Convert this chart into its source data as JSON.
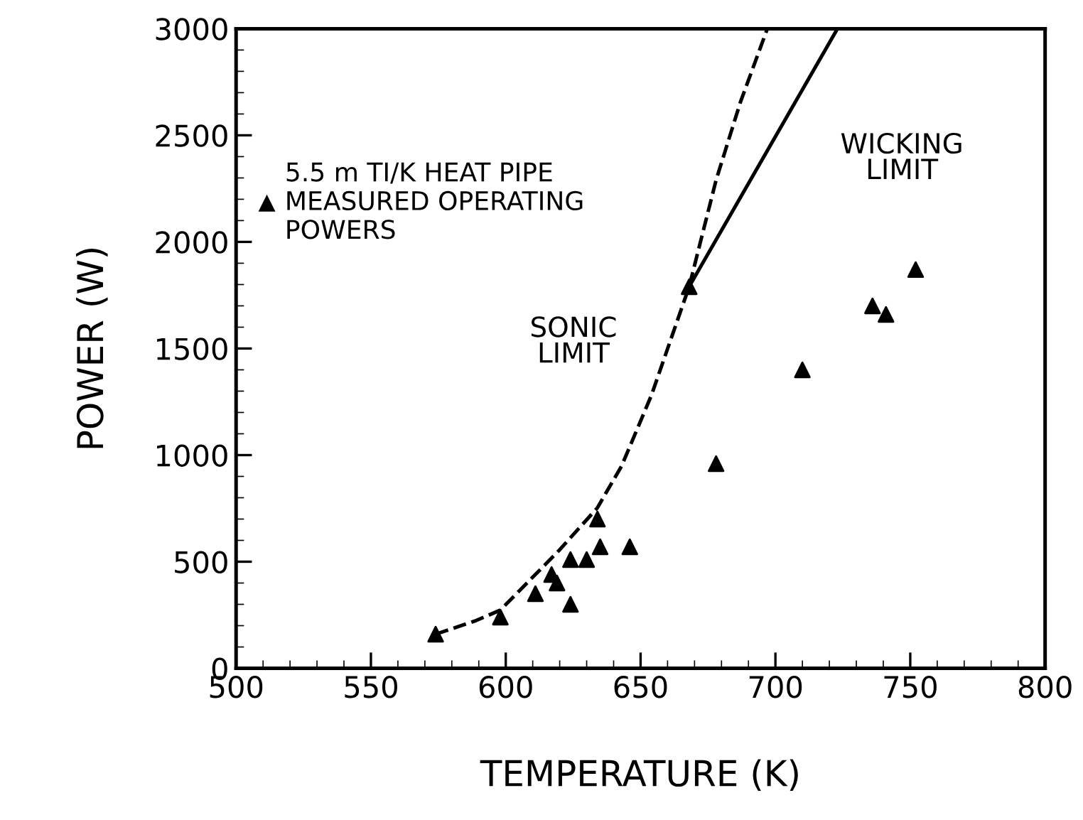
{
  "chart_data": {
    "type": "scatter",
    "xlabel": "TEMPERATURE (K)",
    "ylabel": "POWER (W)",
    "xlim": [
      500,
      800
    ],
    "xticks": [
      500,
      550,
      600,
      650,
      700,
      750,
      800
    ],
    "ylim": [
      0,
      3000
    ],
    "yticks": [
      0,
      500,
      1000,
      1500,
      2000,
      2500,
      3000
    ],
    "grid": false,
    "legend": "top left",
    "series": [
      {
        "name": "5.5 m TI/K HEAT PIPE\nMEASURED OPERATING\nPOWERS",
        "marker": "triangle",
        "color": "#000000",
        "x": [
          574,
          598,
          611,
          617,
          619,
          624,
          624,
          630,
          634,
          635,
          646,
          668,
          678,
          710,
          736,
          741,
          752
        ],
        "values": [
          160,
          240,
          350,
          440,
          400,
          300,
          510,
          510,
          700,
          570,
          570,
          1790,
          960,
          1400,
          1700,
          1660,
          1870
        ]
      },
      {
        "type": "line",
        "line_style": "dashed",
        "marker": "none",
        "color": "#000000",
        "x": [
          574,
          589,
          598,
          620,
          634,
          643,
          654,
          668,
          678,
          687,
          697
        ],
        "values": [
          160,
          224,
          273,
          556,
          753,
          950,
          1280,
          1790,
          2290,
          2655,
          3000
        ]
      },
      {
        "type": "line",
        "line_style": "solid",
        "marker": "none",
        "color": "#000000",
        "x": [
          668,
          723
        ],
        "values": [
          1790,
          3000
        ]
      }
    ],
    "annotations": [
      "SONIC\nLIMIT",
      "WICKING\nLIMIT"
    ]
  }
}
